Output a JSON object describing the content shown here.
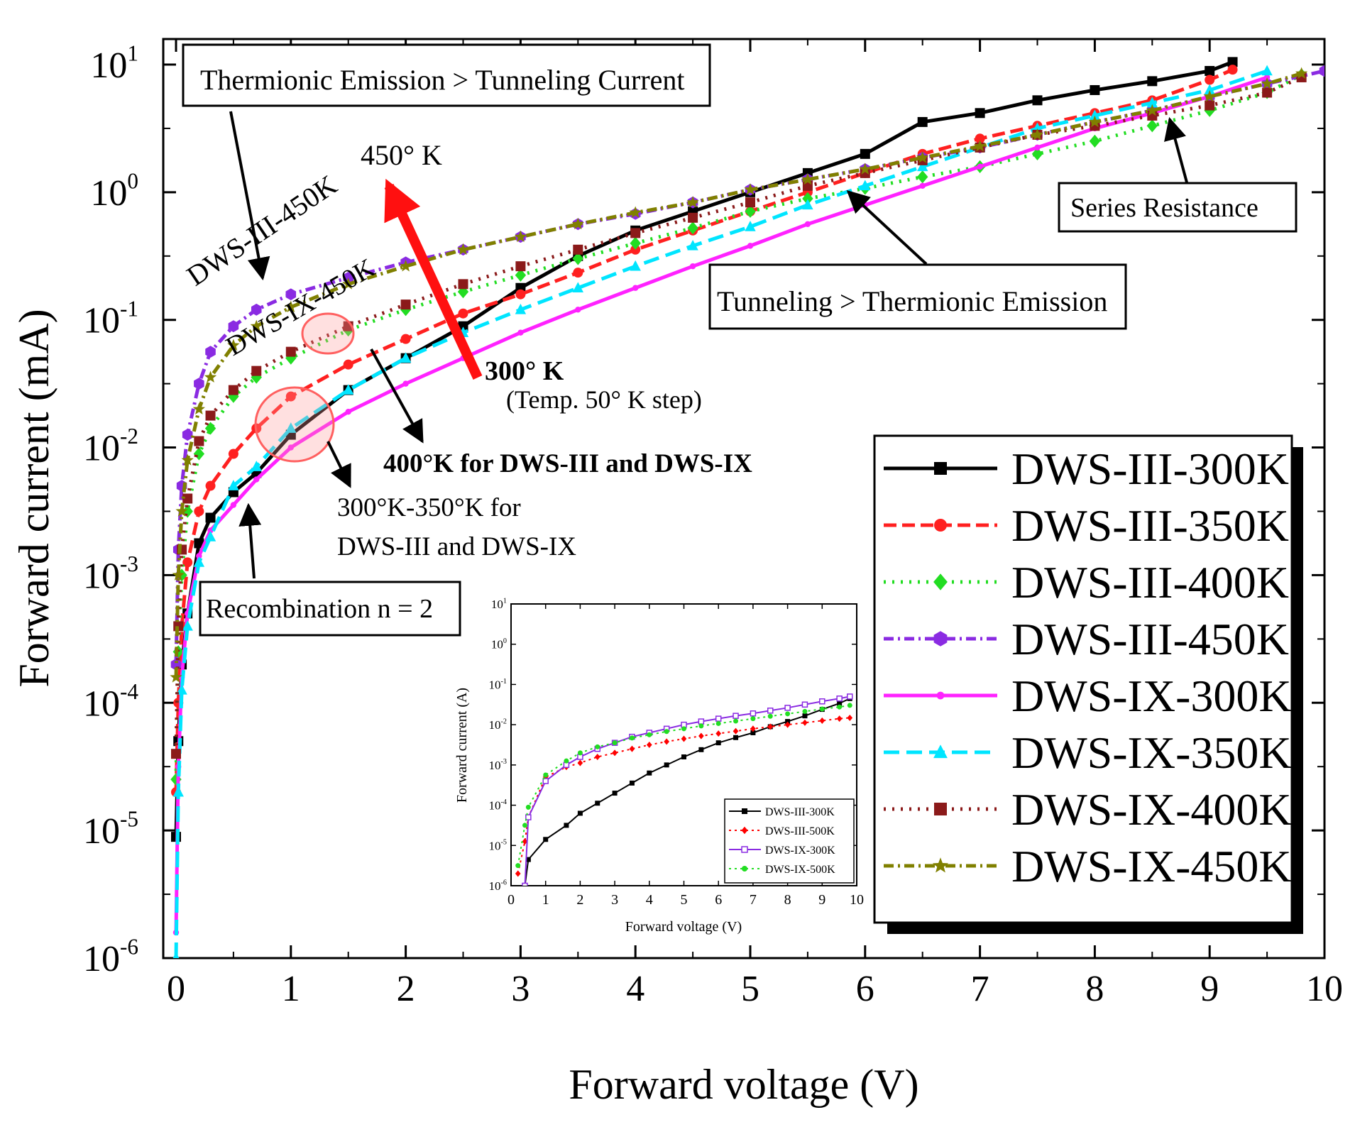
{
  "chart_data": {
    "type": "line",
    "title": "",
    "xlabel": "Forward voltage (V)",
    "ylabel": "Forward current (mA)",
    "xlim": [
      0,
      10
    ],
    "ylim_log10": [
      -6,
      1.2
    ],
    "xticks": [
      "0",
      "1",
      "2",
      "3",
      "4",
      "5",
      "6",
      "7",
      "8",
      "9",
      "10"
    ],
    "yticks": [
      {
        "base": "10",
        "exp": "1"
      },
      {
        "base": "10",
        "exp": "0"
      },
      {
        "base": "10",
        "exp": "-1"
      },
      {
        "base": "10",
        "exp": "-2"
      },
      {
        "base": "10",
        "exp": "-3"
      },
      {
        "base": "10",
        "exp": "-4"
      },
      {
        "base": "10",
        "exp": "-5"
      },
      {
        "base": "10",
        "exp": "-6"
      }
    ],
    "legend_position": "bottom-right",
    "series": [
      {
        "name": "DWS-III-300K",
        "color": "#000000",
        "dash": "",
        "marker": "square",
        "x": [
          0,
          0.02,
          0.05,
          0.1,
          0.2,
          0.3,
          0.5,
          0.7,
          1,
          1.5,
          2,
          2.5,
          3,
          3.5,
          4,
          4.5,
          5,
          5.5,
          6,
          6.5,
          7,
          7.5,
          8,
          8.5,
          9,
          9.2
        ],
        "y": [
          -5.05,
          -4.3,
          -3.7,
          -3.3,
          -2.75,
          -2.55,
          -2.35,
          -2.2,
          -1.9,
          -1.55,
          -1.3,
          -1.05,
          -0.75,
          -0.5,
          -0.3,
          -0.15,
          0.0,
          0.15,
          0.3,
          0.55,
          0.62,
          0.72,
          0.8,
          0.87,
          0.95,
          1.02
        ]
      },
      {
        "name": "DWS-III-350K",
        "color": "#ff2020",
        "dash": "18 8",
        "marker": "circle",
        "x": [
          0,
          0.02,
          0.05,
          0.1,
          0.2,
          0.3,
          0.5,
          0.7,
          1,
          1.5,
          2,
          2.5,
          3,
          3.5,
          4,
          4.5,
          5,
          5.5,
          6,
          6.5,
          7,
          7.5,
          8,
          8.5,
          9,
          9.2
        ],
        "y": [
          -4.7,
          -4.0,
          -3.4,
          -2.9,
          -2.5,
          -2.3,
          -2.05,
          -1.85,
          -1.6,
          -1.35,
          -1.15,
          -0.95,
          -0.8,
          -0.63,
          -0.45,
          -0.3,
          -0.15,
          0.0,
          0.15,
          0.3,
          0.42,
          0.52,
          0.62,
          0.72,
          0.88,
          0.96
        ]
      },
      {
        "name": "DWS-III-400K",
        "color": "#22dd22",
        "dash": "3 9",
        "marker": "diamond",
        "x": [
          0,
          0.02,
          0.05,
          0.1,
          0.2,
          0.3,
          0.5,
          0.7,
          1,
          1.5,
          2,
          2.5,
          3,
          3.5,
          4,
          4.5,
          5,
          5.5,
          6,
          6.5,
          7,
          7.5,
          8,
          8.5,
          9,
          9.5,
          9.8
        ],
        "y": [
          -4.6,
          -3.6,
          -3.0,
          -2.5,
          -2.05,
          -1.85,
          -1.6,
          -1.45,
          -1.3,
          -1.08,
          -0.92,
          -0.78,
          -0.65,
          -0.52,
          -0.4,
          -0.28,
          -0.15,
          -0.05,
          0.03,
          0.12,
          0.2,
          0.3,
          0.4,
          0.52,
          0.64,
          0.78,
          0.92
        ]
      },
      {
        "name": "DWS-III-450K",
        "color": "#8a2be2",
        "dash": "14 6 3 6",
        "marker": "hexagon",
        "x": [
          0,
          0.02,
          0.05,
          0.1,
          0.2,
          0.3,
          0.5,
          0.7,
          1,
          1.5,
          2,
          2.5,
          3,
          3.5,
          4,
          4.5,
          5,
          5.5,
          6,
          6.5,
          7,
          7.5,
          8,
          8.5,
          9,
          9.5,
          10
        ],
        "y": [
          -3.7,
          -2.8,
          -2.3,
          -1.9,
          -1.5,
          -1.25,
          -1.05,
          -0.92,
          -0.8,
          -0.67,
          -0.55,
          -0.45,
          -0.35,
          -0.25,
          -0.17,
          -0.08,
          0.02,
          0.1,
          0.18,
          0.27,
          0.35,
          0.45,
          0.55,
          0.64,
          0.75,
          0.85,
          0.95
        ]
      },
      {
        "name": "DWS-IX-300K",
        "color": "#ff22ff",
        "dash": "",
        "marker": "dot",
        "x": [
          0,
          0.02,
          0.05,
          0.1,
          0.2,
          0.3,
          0.5,
          0.7,
          1,
          1.5,
          2,
          2.5,
          3,
          3.5,
          4,
          4.5,
          5,
          5.5,
          6,
          6.5,
          7,
          7.5,
          8,
          8.5,
          9,
          9.5
        ],
        "y": [
          -5.8,
          -4.5,
          -3.8,
          -3.3,
          -2.85,
          -2.65,
          -2.45,
          -2.25,
          -2.0,
          -1.72,
          -1.5,
          -1.3,
          -1.1,
          -0.92,
          -0.75,
          -0.58,
          -0.42,
          -0.25,
          -0.1,
          0.05,
          0.2,
          0.35,
          0.5,
          0.62,
          0.75,
          0.9
        ]
      },
      {
        "name": "DWS-IX-350K",
        "color": "#00e5ff",
        "dash": "22 10",
        "marker": "triangle",
        "x": [
          0,
          0.02,
          0.05,
          0.1,
          0.2,
          0.3,
          0.5,
          0.7,
          1,
          1.5,
          2,
          2.5,
          3,
          3.5,
          4,
          4.5,
          5,
          5.5,
          6,
          6.5,
          7,
          7.5,
          8,
          8.5,
          9,
          9.5
        ],
        "y": [
          -6.0,
          -4.7,
          -3.9,
          -3.4,
          -2.9,
          -2.7,
          -2.3,
          -2.15,
          -1.85,
          -1.55,
          -1.3,
          -1.1,
          -0.92,
          -0.75,
          -0.58,
          -0.42,
          -0.27,
          -0.1,
          0.05,
          0.2,
          0.35,
          0.5,
          0.6,
          0.7,
          0.8,
          0.95
        ]
      },
      {
        "name": "DWS-IX-400K",
        "color": "#8b1a1a",
        "dash": "3 9",
        "marker": "square",
        "x": [
          0,
          0.02,
          0.05,
          0.1,
          0.2,
          0.3,
          0.5,
          0.7,
          1,
          1.5,
          2,
          2.5,
          3,
          3.5,
          4,
          4.5,
          5,
          5.5,
          6,
          6.5,
          7,
          7.5,
          8,
          8.5,
          9,
          9.5,
          9.8
        ],
        "y": [
          -4.4,
          -3.4,
          -2.8,
          -2.4,
          -1.95,
          -1.75,
          -1.55,
          -1.4,
          -1.25,
          -1.05,
          -0.88,
          -0.72,
          -0.58,
          -0.45,
          -0.32,
          -0.2,
          -0.08,
          0.05,
          0.15,
          0.25,
          0.35,
          0.45,
          0.52,
          0.6,
          0.68,
          0.78,
          0.9
        ]
      },
      {
        "name": "DWS-IX-450K",
        "color": "#808000",
        "dash": "14 6 3 6",
        "marker": "star",
        "x": [
          0,
          0.02,
          0.05,
          0.1,
          0.2,
          0.3,
          0.5,
          0.7,
          1,
          1.5,
          2,
          2.5,
          3,
          3.5,
          4,
          4.5,
          5,
          5.5,
          6,
          6.5,
          7,
          7.5,
          8,
          8.5,
          9,
          9.5,
          9.8
        ],
        "y": [
          -3.8,
          -3.0,
          -2.5,
          -2.1,
          -1.7,
          -1.45,
          -1.2,
          -1.05,
          -0.9,
          -0.72,
          -0.58,
          -0.45,
          -0.35,
          -0.25,
          -0.16,
          -0.08,
          0.02,
          0.1,
          0.18,
          0.27,
          0.36,
          0.45,
          0.55,
          0.64,
          0.75,
          0.85,
          0.93
        ]
      }
    ],
    "annotations": {
      "thermionic": "Thermionic Emission > Tunneling Current",
      "tunneling": "Tunneling > Thermionic Emission",
      "series_resistance": "Series Resistance",
      "recombination": "Recombination n = 2",
      "temp_450": "450° K",
      "temp_300": "300° K",
      "temp_step": "(Temp. 50° K step)",
      "label_400": "400°K for DWS-III and DWS-IX",
      "label_300_350_a": "300°K-350°K for",
      "label_300_350_b": "DWS-III and DWS-IX",
      "curve_label_iii": "DWS-III-450K",
      "curve_label_ix": "DWS-IX-450K"
    },
    "inset": {
      "xlabel": "Forward voltage (V)",
      "ylabel": "Forward current (A)",
      "xlim": [
        0,
        10
      ],
      "ylim_log10": [
        -6,
        1
      ],
      "xticks": [
        "0",
        "1",
        "2",
        "3",
        "4",
        "5",
        "6",
        "7",
        "8",
        "9",
        "10"
      ],
      "yticks": [
        {
          "base": "10",
          "exp": "1"
        },
        {
          "base": "10",
          "exp": "0"
        },
        {
          "base": "10",
          "exp": "-1"
        },
        {
          "base": "10",
          "exp": "-2"
        },
        {
          "base": "10",
          "exp": "-3"
        },
        {
          "base": "10",
          "exp": "-4"
        },
        {
          "base": "10",
          "exp": "-5"
        },
        {
          "base": "10",
          "exp": "-6"
        }
      ],
      "series": [
        {
          "name": "DWS-III-300K",
          "color": "#000000",
          "dash": "",
          "marker": "square",
          "x": [
            0.4,
            0.5,
            1,
            1.6,
            2,
            2.5,
            3,
            3.5,
            4,
            4.5,
            5,
            5.5,
            6,
            6.5,
            7,
            7.5,
            8,
            8.5,
            9,
            9.5,
            9.8
          ],
          "y": [
            -6.0,
            -5.35,
            -4.85,
            -4.5,
            -4.2,
            -3.95,
            -3.7,
            -3.45,
            -3.2,
            -3.0,
            -2.8,
            -2.62,
            -2.45,
            -2.32,
            -2.2,
            -2.05,
            -1.92,
            -1.78,
            -1.62,
            -1.47,
            -1.35
          ]
        },
        {
          "name": "DWS-III-500K",
          "color": "#ff0000",
          "dash": "3 5",
          "marker": "diamond",
          "x": [
            0.2,
            0.4,
            0.5,
            1,
            1.6,
            2,
            2.5,
            3,
            3.5,
            4,
            4.5,
            5,
            5.5,
            6,
            6.5,
            7,
            7.5,
            8,
            8.5,
            9,
            9.5,
            9.8
          ],
          "y": [
            -5.7,
            -4.9,
            -4.3,
            -3.3,
            -3.05,
            -2.95,
            -2.8,
            -2.7,
            -2.6,
            -2.5,
            -2.42,
            -2.35,
            -2.28,
            -2.22,
            -2.16,
            -2.1,
            -2.05,
            -2.0,
            -1.95,
            -1.9,
            -1.85,
            -1.83
          ]
        },
        {
          "name": "DWS-IX-300K",
          "color": "#8a2be2",
          "dash": "",
          "marker": "square-open",
          "x": [
            0.4,
            0.5,
            1,
            1.6,
            2,
            2.5,
            3,
            3.5,
            4,
            4.5,
            5,
            5.5,
            6,
            6.5,
            7,
            7.5,
            8,
            8.5,
            9,
            9.5,
            9.8
          ],
          "y": [
            -6.0,
            -4.3,
            -3.4,
            -3.0,
            -2.8,
            -2.6,
            -2.45,
            -2.3,
            -2.2,
            -2.1,
            -2.0,
            -1.92,
            -1.85,
            -1.78,
            -1.72,
            -1.65,
            -1.58,
            -1.5,
            -1.42,
            -1.35,
            -1.3
          ]
        },
        {
          "name": "DWS-IX-500K",
          "color": "#22dd22",
          "dash": "3 5",
          "marker": "circle",
          "x": [
            0.2,
            0.4,
            0.5,
            1,
            1.6,
            2,
            2.5,
            3,
            3.5,
            4,
            4.5,
            5,
            5.5,
            6,
            6.5,
            7,
            7.5,
            8,
            8.5,
            9,
            9.5,
            9.8
          ],
          "y": [
            -5.5,
            -4.5,
            -4.05,
            -3.25,
            -2.9,
            -2.7,
            -2.55,
            -2.45,
            -2.33,
            -2.25,
            -2.17,
            -2.1,
            -2.03,
            -1.97,
            -1.91,
            -1.85,
            -1.79,
            -1.73,
            -1.67,
            -1.61,
            -1.56,
            -1.52
          ]
        }
      ]
    }
  }
}
